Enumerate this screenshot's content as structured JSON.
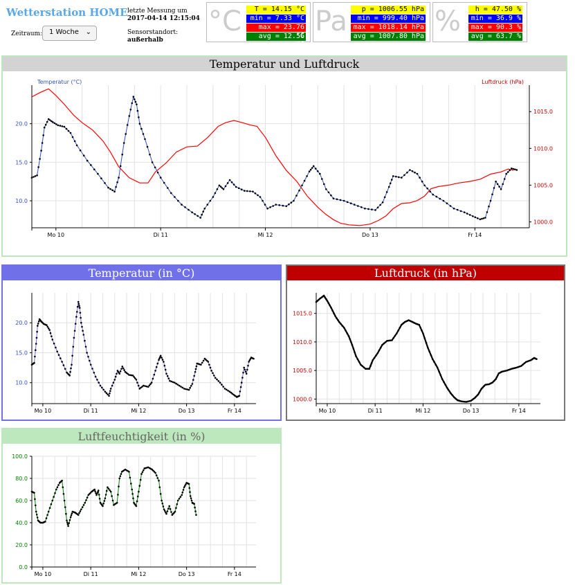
{
  "header": {
    "title": "Wetterstation HOME",
    "range_label": "Zeitraum:",
    "range_value": "1 Woche",
    "last_label": "letzte Messung um",
    "last_value": "2017-04-14 12:15:04",
    "location_label": "Sensorstandort:",
    "location_value": "außerhalb"
  },
  "stats": [
    {
      "glyph": "°C",
      "cur": "T = 14.15 °C",
      "min": "min = 7.33 °C",
      "max": "max = 23.76 °C",
      "avg": "avg = 12.56 °C"
    },
    {
      "glyph": "Pa",
      "cur": "p = 1006.55 hPa",
      "min": "min = 999.40 hPa",
      "max": "max = 1018.14 hPa",
      "avg": "avg = 1007.80 hPa"
    },
    {
      "glyph": "%",
      "cur": "h = 47.50 %",
      "min": "min = 36.9 %",
      "max": "max = 90.3 %",
      "avg": "avg = 63.7 %"
    }
  ],
  "colors": {
    "temp": "#0000ff",
    "pressure": "#ff0000",
    "humidity": "#008000",
    "temp_head": "#7070e8",
    "pressure_head": "#c00000",
    "humidity_head": "#bde8bd",
    "combo_head": "#d3d3d3"
  },
  "chart_data": [
    {
      "id": "combo",
      "type": "line",
      "title": "Temperatur und Luftdruck",
      "x_ticks": [
        "Mo 10",
        "Di 11",
        "Mi 12",
        "Do 13",
        "Fr 14"
      ],
      "x_range": [
        9.77,
        14.52
      ],
      "series": [
        {
          "name": "Temperatur (°C)",
          "axis": "left",
          "ylim": [
            6.5,
            25
          ],
          "ticks": [
            "10.0",
            "15.0",
            "20.0"
          ],
          "points": [
            [
              9.77,
              13.0
            ],
            [
              9.82,
              13.3
            ],
            [
              9.86,
              16.5
            ],
            [
              9.89,
              19.5
            ],
            [
              9.93,
              20.6
            ],
            [
              9.97,
              20.2
            ],
            [
              10.02,
              19.8
            ],
            [
              10.08,
              19.6
            ],
            [
              10.14,
              18.8
            ],
            [
              10.2,
              17.2
            ],
            [
              10.3,
              15.2
            ],
            [
              10.4,
              13.5
            ],
            [
              10.5,
              11.7
            ],
            [
              10.56,
              11.2
            ],
            [
              10.6,
              13.0
            ],
            [
              10.65,
              17.5
            ],
            [
              10.7,
              21.0
            ],
            [
              10.74,
              23.5
            ],
            [
              10.77,
              22.5
            ],
            [
              10.8,
              20.0
            ],
            [
              10.85,
              18.0
            ],
            [
              10.92,
              15.0
            ],
            [
              11.0,
              13.0
            ],
            [
              11.1,
              11.0
            ],
            [
              11.2,
              9.5
            ],
            [
              11.3,
              8.5
            ],
            [
              11.38,
              7.8
            ],
            [
              11.42,
              9.0
            ],
            [
              11.5,
              10.5
            ],
            [
              11.56,
              12.0
            ],
            [
              11.6,
              11.5
            ],
            [
              11.66,
              12.7
            ],
            [
              11.72,
              11.8
            ],
            [
              11.8,
              11.3
            ],
            [
              11.88,
              11.2
            ],
            [
              11.95,
              10.5
            ],
            [
              12.02,
              9.0
            ],
            [
              12.1,
              9.5
            ],
            [
              12.2,
              9.3
            ],
            [
              12.27,
              10.0
            ],
            [
              12.35,
              12.0
            ],
            [
              12.42,
              13.8
            ],
            [
              12.46,
              14.5
            ],
            [
              12.52,
              13.5
            ],
            [
              12.58,
              11.5
            ],
            [
              12.65,
              10.3
            ],
            [
              12.75,
              10.0
            ],
            [
              12.85,
              9.5
            ],
            [
              12.95,
              9.0
            ],
            [
              13.05,
              8.8
            ],
            [
              13.12,
              9.8
            ],
            [
              13.18,
              11.8
            ],
            [
              13.22,
              13.2
            ],
            [
              13.3,
              13.0
            ],
            [
              13.38,
              14.0
            ],
            [
              13.45,
              13.5
            ],
            [
              13.52,
              12.0
            ],
            [
              13.6,
              10.8
            ],
            [
              13.7,
              10.0
            ],
            [
              13.8,
              9.0
            ],
            [
              13.9,
              8.5
            ],
            [
              13.98,
              8.0
            ],
            [
              14.05,
              7.6
            ],
            [
              14.1,
              7.8
            ],
            [
              14.15,
              10.0
            ],
            [
              14.2,
              12.5
            ],
            [
              14.25,
              11.5
            ],
            [
              14.3,
              13.5
            ],
            [
              14.35,
              14.2
            ],
            [
              14.4,
              14.0
            ]
          ]
        },
        {
          "name": "Luftdruck (hPa)",
          "axis": "right",
          "ylim": [
            999.2,
            1018.6
          ],
          "ticks": [
            "1000.0",
            "1005.0",
            "1010.0",
            "1015.0"
          ],
          "points": [
            [
              9.77,
              1017.0
            ],
            [
              9.85,
              1017.6
            ],
            [
              9.93,
              1018.1
            ],
            [
              10.0,
              1017.2
            ],
            [
              10.08,
              1016.0
            ],
            [
              10.17,
              1014.5
            ],
            [
              10.25,
              1013.5
            ],
            [
              10.35,
              1012.5
            ],
            [
              10.45,
              1011.0
            ],
            [
              10.52,
              1009.5
            ],
            [
              10.6,
              1007.5
            ],
            [
              10.7,
              1006.0
            ],
            [
              10.8,
              1005.3
            ],
            [
              10.88,
              1005.3
            ],
            [
              10.95,
              1006.8
            ],
            [
              11.05,
              1008.0
            ],
            [
              11.15,
              1009.5
            ],
            [
              11.25,
              1010.2
            ],
            [
              11.35,
              1010.3
            ],
            [
              11.45,
              1011.5
            ],
            [
              11.55,
              1013.0
            ],
            [
              11.62,
              1013.5
            ],
            [
              11.7,
              1013.8
            ],
            [
              11.78,
              1013.5
            ],
            [
              11.85,
              1013.2
            ],
            [
              11.92,
              1013.0
            ],
            [
              12.0,
              1011.5
            ],
            [
              12.1,
              1009.0
            ],
            [
              12.2,
              1007.0
            ],
            [
              12.3,
              1005.5
            ],
            [
              12.4,
              1003.5
            ],
            [
              12.5,
              1002.0
            ],
            [
              12.58,
              1001.0
            ],
            [
              12.65,
              1000.3
            ],
            [
              12.72,
              999.8
            ],
            [
              12.8,
              999.6
            ],
            [
              12.9,
              999.5
            ],
            [
              13.0,
              999.7
            ],
            [
              13.08,
              1000.2
            ],
            [
              13.15,
              1000.8
            ],
            [
              13.22,
              1001.8
            ],
            [
              13.3,
              1002.5
            ],
            [
              13.38,
              1002.6
            ],
            [
              13.45,
              1002.9
            ],
            [
              13.52,
              1003.5
            ],
            [
              13.58,
              1004.5
            ],
            [
              13.65,
              1004.8
            ],
            [
              13.75,
              1005.0
            ],
            [
              13.85,
              1005.3
            ],
            [
              13.95,
              1005.5
            ],
            [
              14.05,
              1005.8
            ],
            [
              14.15,
              1006.5
            ],
            [
              14.25,
              1006.8
            ],
            [
              14.32,
              1007.2
            ],
            [
              14.37,
              1007.0
            ]
          ]
        }
      ]
    },
    {
      "id": "temp",
      "type": "line",
      "title": "Temperatur (in °C)",
      "x_ticks": [
        "Mo 10",
        "Di 11",
        "Mi 12",
        "Do 13",
        "Fr 14"
      ],
      "ylim": [
        6.5,
        25
      ],
      "y_ticks": [
        "10.0",
        "15.0",
        "20.0"
      ],
      "points": "combo.0"
    },
    {
      "id": "pressure",
      "type": "line",
      "title": "Luftdruck (in hPa)",
      "x_ticks": [
        "Mo 10",
        "Di 11",
        "Mi 12",
        "Do 13",
        "Fr 14"
      ],
      "ylim": [
        999.2,
        1018.6
      ],
      "y_ticks": [
        "1000.0",
        "1005.0",
        "1010.0",
        "1015.0"
      ],
      "points": "combo.1"
    },
    {
      "id": "humidity",
      "type": "line",
      "title": "Luftfeuchtigkeit (in %)",
      "x_ticks": [
        "Mo 10",
        "Di 11",
        "Mi 12",
        "Do 13",
        "Fr 14"
      ],
      "ylim": [
        0,
        100
      ],
      "y_ticks": [
        "0.0",
        "20.0",
        "40.0",
        "60.0",
        "80.0",
        "100.0"
      ],
      "points": [
        [
          9.77,
          68
        ],
        [
          9.82,
          67
        ],
        [
          9.86,
          50
        ],
        [
          9.9,
          42
        ],
        [
          9.95,
          40
        ],
        [
          10.0,
          40
        ],
        [
          10.05,
          41
        ],
        [
          10.12,
          50
        ],
        [
          10.2,
          60
        ],
        [
          10.28,
          70
        ],
        [
          10.35,
          76
        ],
        [
          10.4,
          78
        ],
        [
          10.45,
          60
        ],
        [
          10.5,
          42
        ],
        [
          10.53,
          37
        ],
        [
          10.58,
          45
        ],
        [
          10.62,
          50
        ],
        [
          10.68,
          49
        ],
        [
          10.74,
          47
        ],
        [
          10.8,
          52
        ],
        [
          10.88,
          58
        ],
        [
          10.95,
          65
        ],
        [
          11.02,
          68
        ],
        [
          11.08,
          70
        ],
        [
          11.12,
          65
        ],
        [
          11.16,
          69
        ],
        [
          11.2,
          58
        ],
        [
          11.25,
          55
        ],
        [
          11.3,
          62
        ],
        [
          11.35,
          72
        ],
        [
          11.42,
          68
        ],
        [
          11.48,
          56
        ],
        [
          11.55,
          58
        ],
        [
          11.6,
          80
        ],
        [
          11.65,
          86
        ],
        [
          11.72,
          88
        ],
        [
          11.8,
          86
        ],
        [
          11.86,
          70
        ],
        [
          11.9,
          58
        ],
        [
          11.95,
          55
        ],
        [
          12.0,
          68
        ],
        [
          12.06,
          84
        ],
        [
          12.12,
          89
        ],
        [
          12.2,
          90
        ],
        [
          12.28,
          88
        ],
        [
          12.35,
          85
        ],
        [
          12.42,
          78
        ],
        [
          12.48,
          60
        ],
        [
          12.53,
          52
        ],
        [
          12.58,
          48
        ],
        [
          12.64,
          55
        ],
        [
          12.7,
          47
        ],
        [
          12.76,
          50
        ],
        [
          12.82,
          60
        ],
        [
          12.9,
          65
        ],
        [
          12.95,
          72
        ],
        [
          13.0,
          76
        ],
        [
          13.05,
          75
        ],
        [
          13.08,
          64
        ],
        [
          13.12,
          58
        ],
        [
          13.16,
          57
        ],
        [
          13.2,
          47
        ]
      ]
    }
  ]
}
